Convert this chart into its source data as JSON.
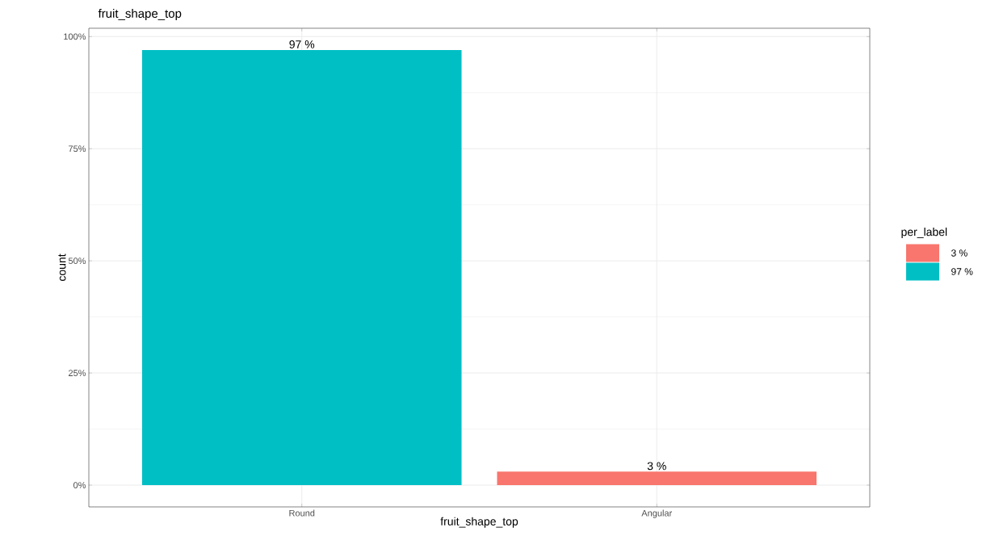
{
  "chart_data": {
    "type": "bar",
    "title": "fruit_shape_top",
    "xlabel": "fruit_shape_top",
    "ylabel": "count",
    "legend_title": "per_label",
    "categories": [
      "Round",
      "Angular"
    ],
    "series": [
      {
        "name": "3 %",
        "color": "#f8766d",
        "values": [
          null,
          3
        ],
        "value_labels": [
          null,
          "3 %"
        ]
      },
      {
        "name": "97 %",
        "color": "#00bfc4",
        "values": [
          97,
          null
        ],
        "value_labels": [
          "97 %",
          null
        ]
      }
    ],
    "ylim": [
      -4.85,
      101.85
    ],
    "yticks": [
      {
        "value": 0,
        "label": "0%"
      },
      {
        "value": 25,
        "label": "25%"
      },
      {
        "value": 50,
        "label": "50%"
      },
      {
        "value": 75,
        "label": "75%"
      },
      {
        "value": 100,
        "label": "100%"
      }
    ],
    "grid": true,
    "legend": "right"
  }
}
